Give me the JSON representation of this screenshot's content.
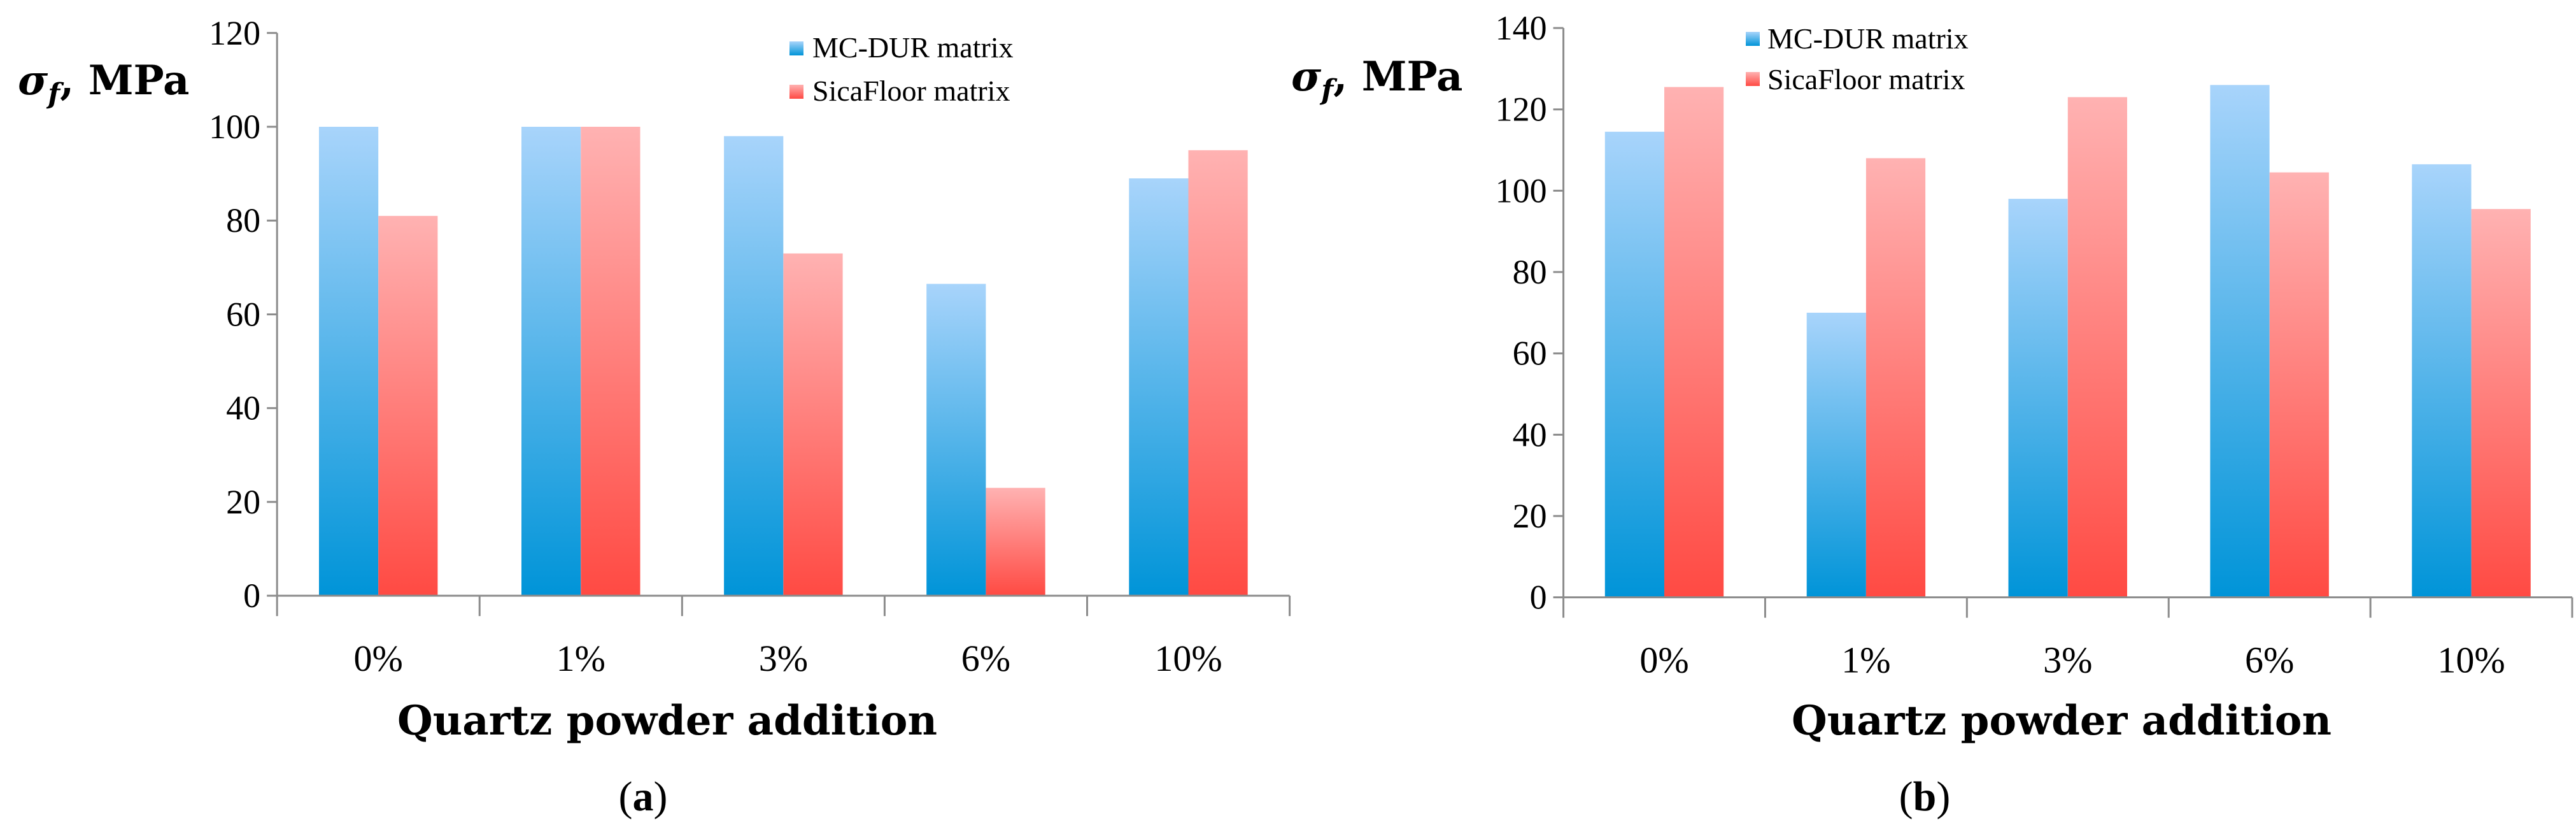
{
  "colors": {
    "series_0_top": "#a8d4fb",
    "series_0_bottom": "#0094d8",
    "series_1_top": "#ffb2b2",
    "series_1_bottom": "#ff4a43",
    "axis": "#8c8c8c"
  },
  "chart_data": [
    {
      "type": "bar",
      "panel_label": "a",
      "title": "",
      "ylabel_symbol": "σ",
      "ylabel_subscript": "f",
      "ylabel_unit": ", MPa",
      "xlabel": "Quartz powder addition",
      "categories": [
        "0%",
        "1%",
        "3%",
        "6%",
        "10%"
      ],
      "series": [
        {
          "name": "MC-DUR matrix",
          "values": [
            100,
            100,
            98,
            66.5,
            89
          ]
        },
        {
          "name": "SicaFloor matrix",
          "values": [
            81,
            100,
            73,
            23,
            95
          ]
        }
      ],
      "ylim": [
        0,
        120
      ],
      "yticks": [
        "0",
        "20",
        "40",
        "60",
        "80",
        "100",
        "120"
      ],
      "grid": false,
      "legend_position": "top-right"
    },
    {
      "type": "bar",
      "panel_label": "b",
      "title": "",
      "ylabel_symbol": "σ",
      "ylabel_subscript": "f",
      "ylabel_unit": ", MPa",
      "xlabel": "Quartz powder addition",
      "categories": [
        "0%",
        "1%",
        "3%",
        "6%",
        "10%"
      ],
      "series": [
        {
          "name": "MC-DUR matrix",
          "values": [
            114.5,
            70,
            98,
            126,
            106.5
          ]
        },
        {
          "name": "SicaFloor matrix",
          "values": [
            125.5,
            108,
            123,
            104.5,
            95.5
          ]
        }
      ],
      "ylim": [
        0,
        140
      ],
      "yticks": [
        "0",
        "20",
        "40",
        "60",
        "80",
        "100",
        "120",
        "140"
      ],
      "grid": false,
      "legend_position": "top"
    }
  ]
}
